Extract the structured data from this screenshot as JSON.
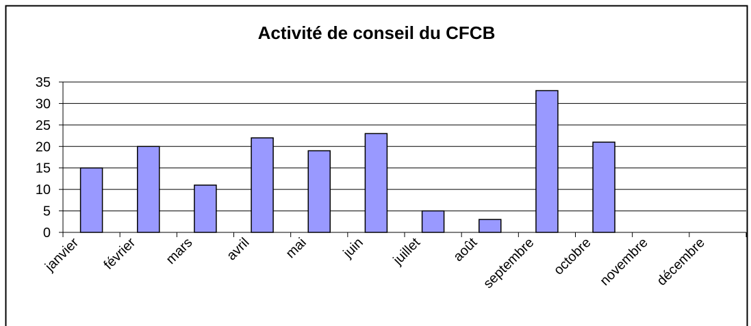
{
  "chart_data": {
    "type": "bar",
    "title": "Activité de conseil du CFCB",
    "categories": [
      "janvier",
      "février",
      "mars",
      "avril",
      "mai",
      "juin",
      "juillet",
      "août",
      "septembre",
      "octobre",
      "novembre",
      "décembre"
    ],
    "values": [
      15,
      20,
      11,
      22,
      19,
      23,
      5,
      3,
      33,
      21,
      0,
      0
    ],
    "color": "#9999ff",
    "ylim": [
      0,
      35
    ],
    "yticks": [
      0,
      5,
      10,
      15,
      20,
      25,
      30,
      35
    ],
    "grid": true
  }
}
